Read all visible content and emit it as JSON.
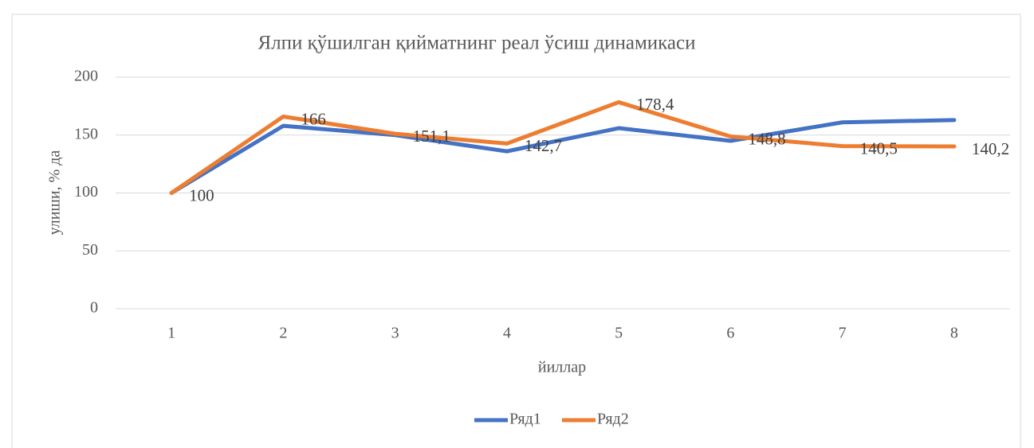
{
  "chart_data": {
    "type": "line",
    "title": "Ялпи қўшилган қийматнинг реал ўсиш динамикаси",
    "x_label": "йиллар",
    "y_label": "улиши, % да",
    "categories": [
      "1",
      "2",
      "3",
      "4",
      "5",
      "6",
      "7",
      "8"
    ],
    "series": [
      {
        "name": "Ряд1",
        "color": "#4472c4",
        "values": [
          100,
          158,
          150,
          136,
          156,
          145,
          161,
          163
        ]
      },
      {
        "name": "Ряд2",
        "color": "#ed7d31",
        "values": [
          100,
          166,
          151.1,
          142.7,
          178.4,
          148.8,
          140.5,
          140.2
        ],
        "value_labels": [
          "100",
          "166",
          "151,1",
          "142,7",
          "178,4",
          "148,8",
          "140,5",
          "140,2"
        ]
      }
    ],
    "ylim": [
      0,
      200
    ],
    "yticks": [
      0,
      50,
      100,
      150,
      200
    ],
    "grid": true,
    "legend": "bottom"
  }
}
